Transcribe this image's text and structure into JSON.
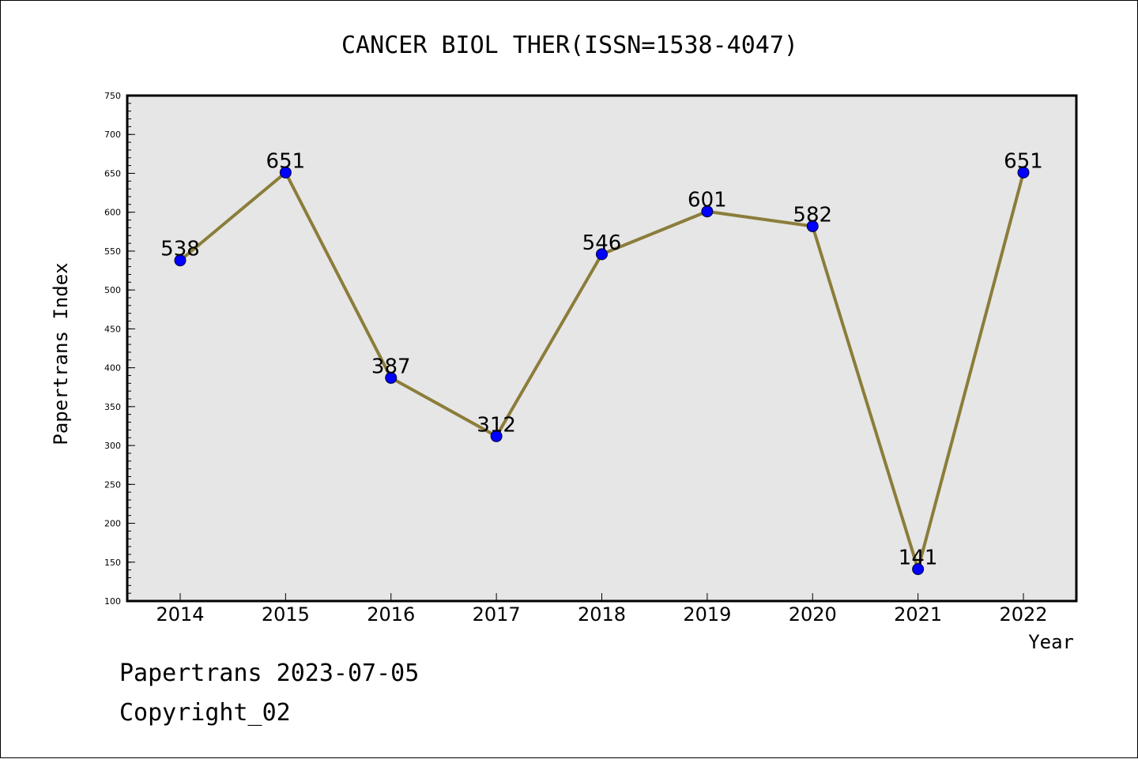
{
  "chart_data": {
    "type": "line",
    "title": "CANCER BIOL THER(ISSN=1538-4047)",
    "xlabel": "Year",
    "ylabel": "Papertrans Index",
    "categories": [
      "2014",
      "2015",
      "2016",
      "2017",
      "2018",
      "2019",
      "2020",
      "2021",
      "2022"
    ],
    "values": [
      538,
      651,
      387,
      312,
      546,
      601,
      582,
      141,
      651
    ],
    "ylim": [
      100,
      750
    ],
    "yticks": [
      100,
      150,
      200,
      250,
      300,
      350,
      400,
      450,
      500,
      550,
      600,
      650,
      700,
      750
    ],
    "grid": false,
    "data_labels": true,
    "colors": {
      "plot_background": "#e6e6e6",
      "line": "#8b7d3a",
      "marker": "#0000ff"
    }
  },
  "footer": {
    "line1": "Papertrans 2023-07-05",
    "line2": "Copyright_02"
  }
}
